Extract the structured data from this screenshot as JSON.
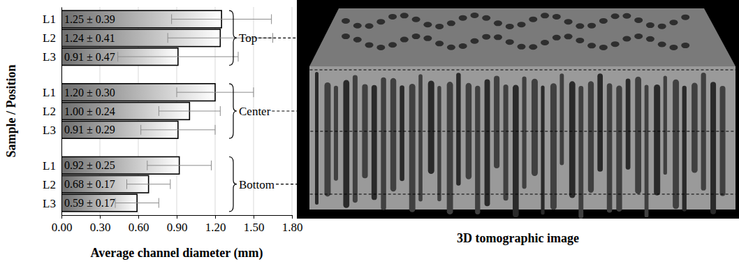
{
  "chart_data": {
    "type": "bar",
    "orientation": "horizontal",
    "categories": [
      "L1",
      "L2",
      "L3",
      "L1",
      "L2",
      "L3",
      "L1",
      "L2",
      "L3"
    ],
    "group_labels": [
      "Top",
      "Center",
      "Bottom"
    ],
    "values": [
      1.25,
      1.24,
      0.91,
      1.2,
      1.0,
      0.91,
      0.92,
      0.68,
      0.59
    ],
    "errors": [
      0.39,
      0.41,
      0.47,
      0.3,
      0.24,
      0.29,
      0.25,
      0.17,
      0.17
    ],
    "value_labels": [
      "1.25 ± 0.39",
      "1.24 ± 0.41",
      "0.91 ± 0.47",
      "1.20 ± 0.30",
      "1.00 ± 0.24",
      "0.91 ± 0.29",
      "0.92 ± 0.25",
      "0.68 ± 0.17",
      "0.59 ± 0.17"
    ],
    "data_labels": true,
    "color": "#6e6e6e",
    "xlabel": "Average channel diameter (mm)",
    "ylabel": "Sample / Position",
    "xlim": [
      0,
      1.8
    ],
    "xticks": [
      {
        "value": 0,
        "label": "0.00"
      },
      {
        "value": 0.3,
        "label": "0.30"
      },
      {
        "value": 0.6,
        "label": "0.60"
      },
      {
        "value": 0.9,
        "label": "0.90"
      },
      {
        "value": 1.2,
        "label": "1.20"
      },
      {
        "value": 1.5,
        "label": "1.50"
      },
      {
        "value": 1.8,
        "label": "1.80"
      }
    ],
    "grid": true,
    "image_caption": "3D tomographic image"
  }
}
